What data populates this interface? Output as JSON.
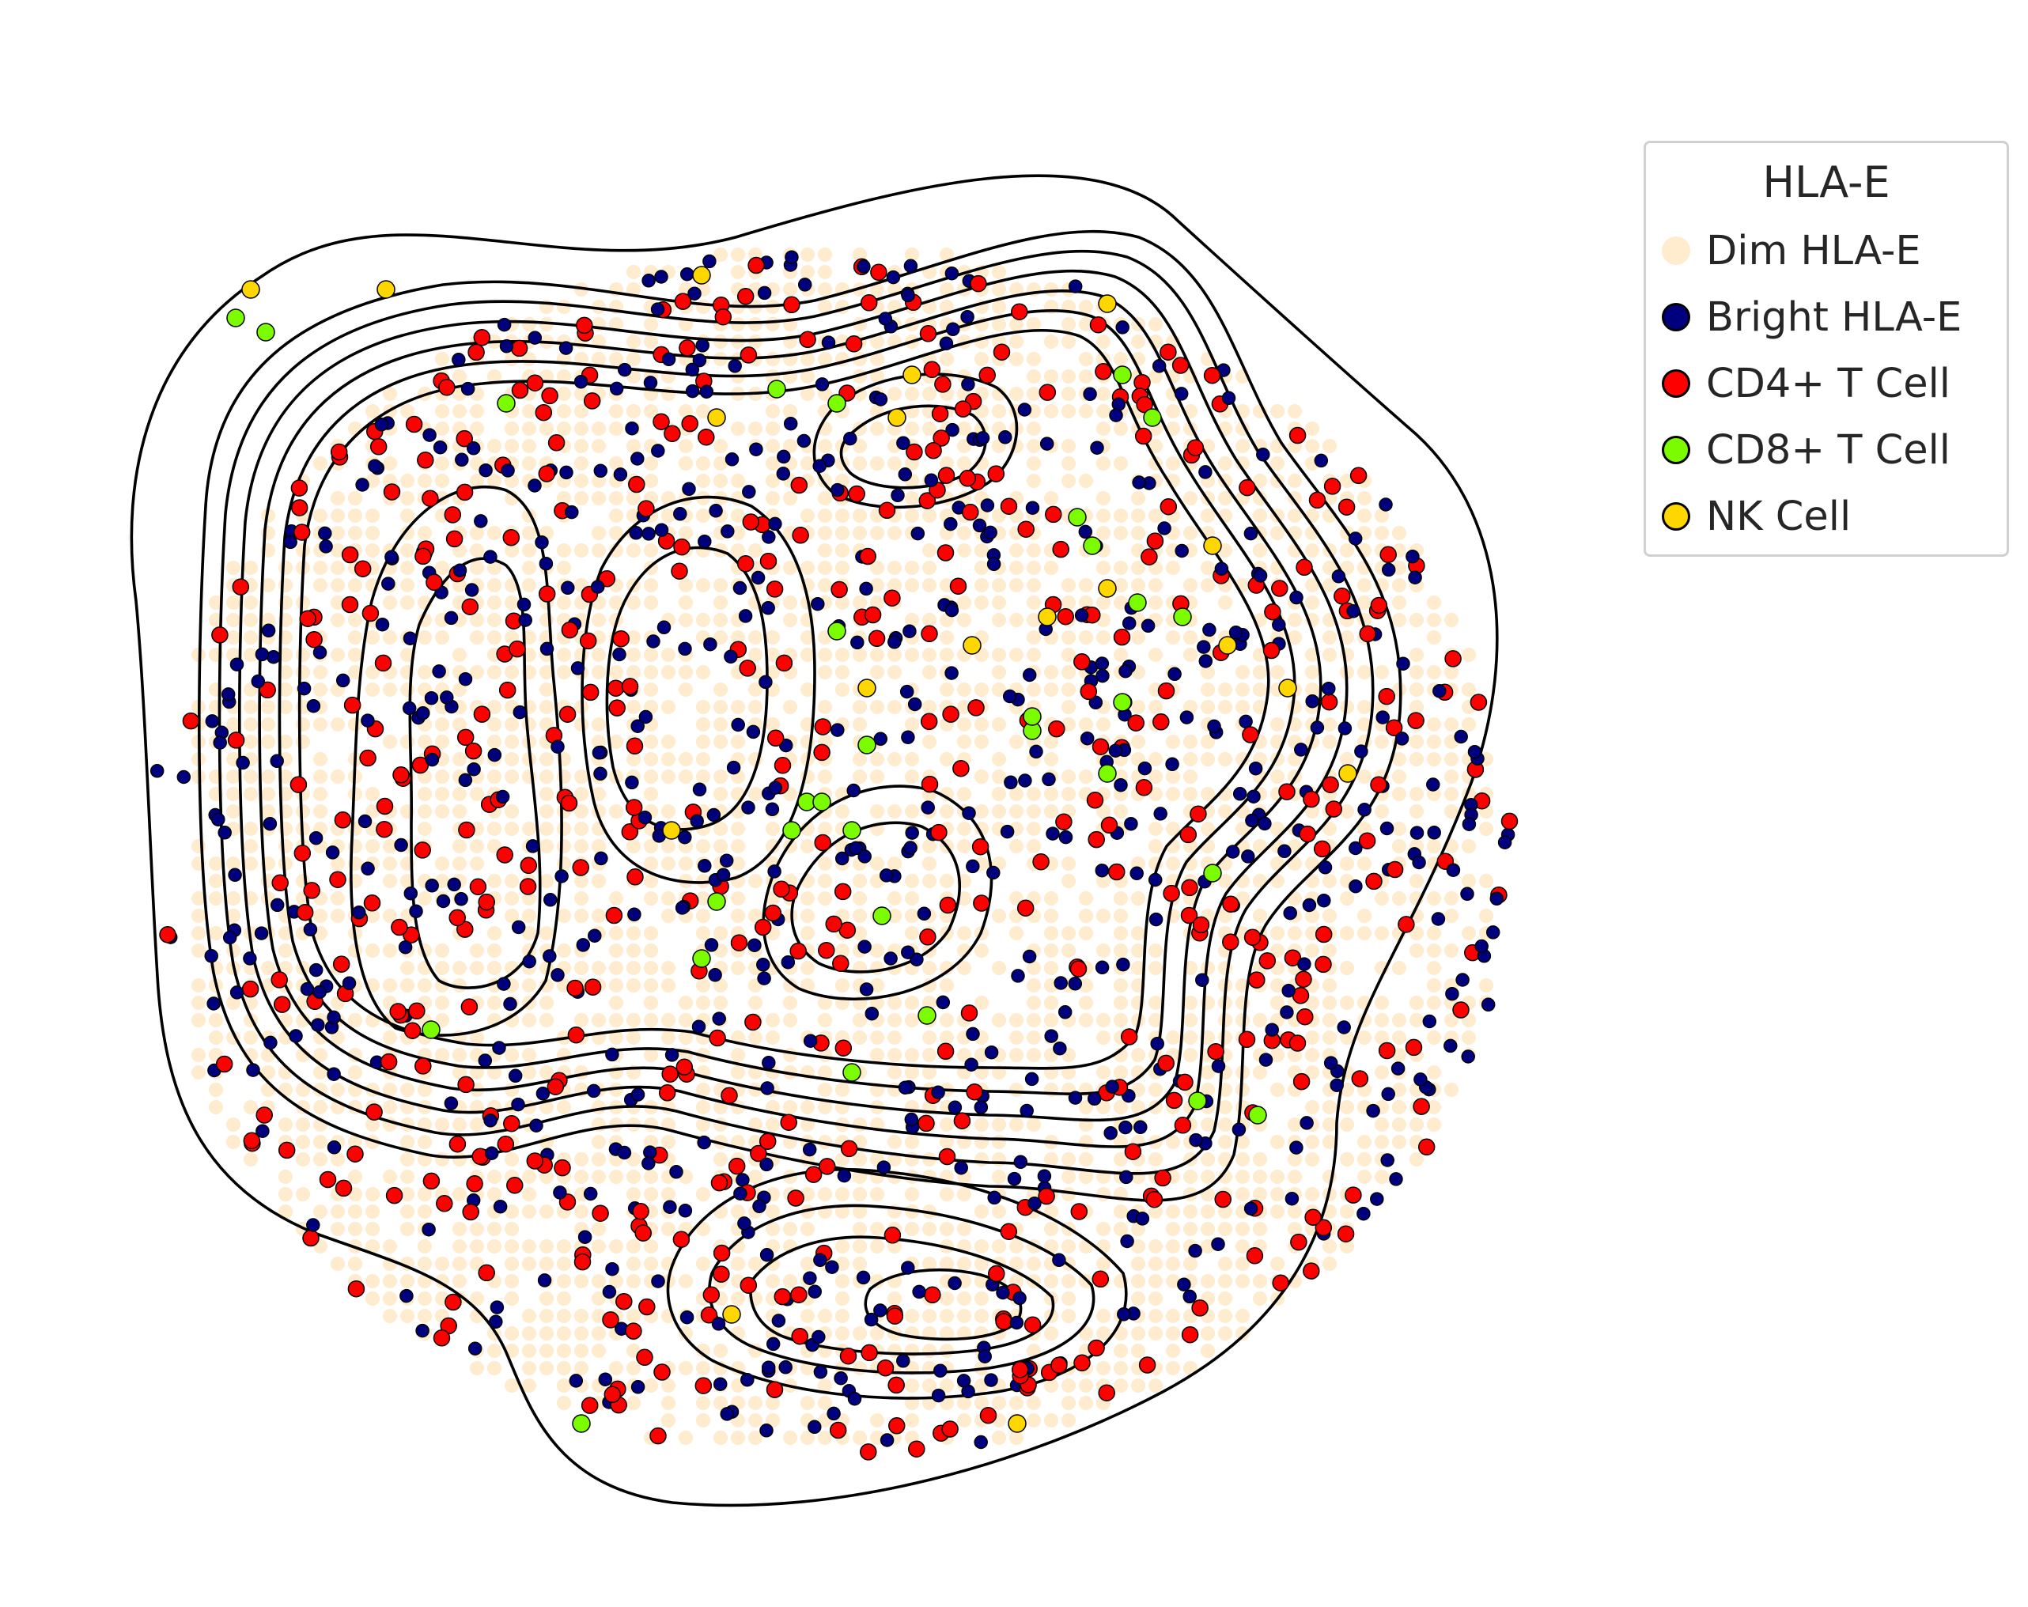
{
  "chart_data": {
    "type": "scatter",
    "title": "",
    "xlabel": "",
    "ylabel": "",
    "axes_visible": false,
    "grid": false,
    "legend": {
      "title": "HLA-E",
      "placement": "top-right outside",
      "entries": [
        {
          "label": "Dim HLA-E",
          "color": "#ffebcd",
          "edge": "none"
        },
        {
          "label": "Bright HLA-E",
          "color": "#00007f",
          "edge": "#000000"
        },
        {
          "label": "CD4+ T Cell",
          "color": "#ff0000",
          "edge": "#000000"
        },
        {
          "label": "CD8+ T Cell",
          "color": "#7cfc00",
          "edge": "#000000"
        },
        {
          "label": "NK Cell",
          "color": "#ffd700",
          "edge": "#000000"
        }
      ]
    },
    "overlay": {
      "type": "kde-contour",
      "levels": 9,
      "color": "#000000"
    },
    "xlim": [
      0,
      100
    ],
    "ylim": [
      0,
      100
    ],
    "series": [
      {
        "name": "CD8+ T Cell",
        "points": [
          [
            15,
            54
          ],
          [
            25,
            86
          ],
          [
            33,
            49
          ],
          [
            34,
            45
          ],
          [
            39,
            40
          ],
          [
            40,
            38
          ],
          [
            41,
            38
          ],
          [
            42,
            26
          ],
          [
            43,
            40
          ],
          [
            44,
            34
          ],
          [
            45,
            46
          ],
          [
            43,
            57
          ],
          [
            55,
            33
          ],
          [
            60,
            36
          ],
          [
            61,
            31
          ],
          [
            62,
            24
          ],
          [
            63,
            11
          ],
          [
            65,
            25
          ],
          [
            66,
            59
          ],
          [
            67,
            43
          ],
          [
            4,
            5
          ],
          [
            2,
            4
          ],
          [
            48,
            53
          ],
          [
            70,
            60
          ],
          [
            55,
            32
          ],
          [
            58,
            18
          ],
          [
            59,
            20
          ],
          [
            42,
            10
          ],
          [
            61,
            8
          ],
          [
            38,
            9
          ],
          [
            20,
            10
          ]
        ]
      },
      {
        "name": "NK Cell",
        "points": [
          [
            3,
            2
          ],
          [
            33,
            1
          ],
          [
            34,
            11
          ],
          [
            46,
            11
          ],
          [
            56,
            25
          ],
          [
            54,
            82
          ],
          [
            35,
            74
          ],
          [
            68,
            27
          ],
          [
            72,
            30
          ],
          [
            76,
            36
          ],
          [
            67,
            20
          ],
          [
            31,
            40
          ],
          [
            60,
            23
          ],
          [
            12,
            2
          ],
          [
            51,
            27
          ],
          [
            47,
            8
          ],
          [
            60,
            3
          ],
          [
            44,
            30
          ]
        ]
      }
    ]
  }
}
